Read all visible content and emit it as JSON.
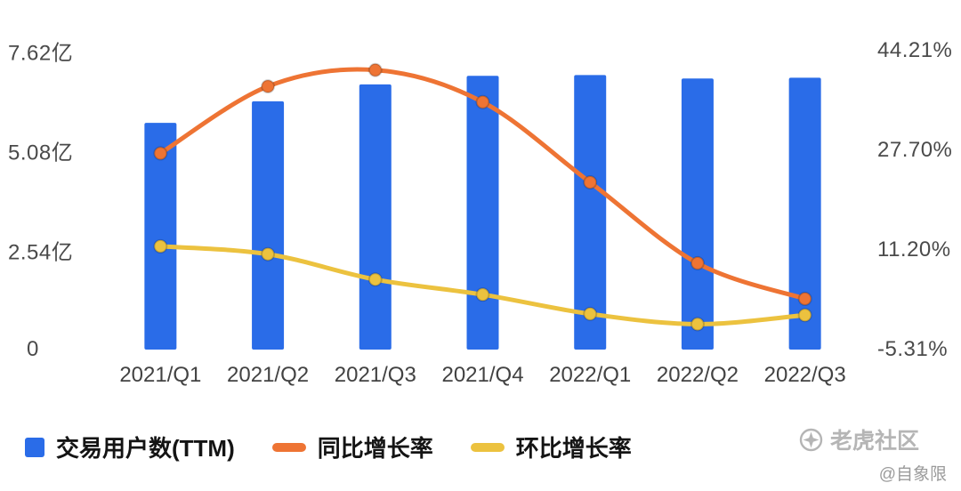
{
  "chart_data": {
    "type": "bar",
    "subtype": "combo-bar-line",
    "title": "",
    "categories": [
      "2021/Q1",
      "2021/Q2",
      "2021/Q3",
      "2021/Q4",
      "2022/Q1",
      "2022/Q2",
      "2022/Q3"
    ],
    "series": [
      {
        "name": "交易用户数(TTM)",
        "type": "bar",
        "axis": "left",
        "color": "#2a6ce8",
        "unit": "亿",
        "values": [
          5.78,
          6.33,
          6.76,
          6.98,
          7.0,
          6.91,
          6.93
        ]
      },
      {
        "name": "同比增长率",
        "type": "line",
        "axis": "right",
        "color": "#ee7434",
        "unit": "%",
        "values": [
          27.2,
          38.3,
          41.0,
          35.7,
          22.4,
          9.0,
          3.1
        ]
      },
      {
        "name": "环比增长率",
        "type": "line",
        "axis": "right",
        "color": "#ecc23f",
        "unit": "%",
        "values": [
          11.8,
          10.5,
          6.3,
          3.8,
          0.6,
          -1.1,
          0.4
        ]
      }
    ],
    "left_axis": {
      "min": 0,
      "max": 7.62,
      "unit": "亿",
      "tick_labels": [
        "7.62亿",
        "5.08亿",
        "2.54亿",
        "0"
      ]
    },
    "right_axis": {
      "min": -5.31,
      "max": 44.21,
      "unit": "%",
      "tick_labels": [
        "44.21%",
        "27.70%",
        "11.20%",
        "-5.31%"
      ]
    },
    "grid": false,
    "legend_position": "bottom"
  },
  "watermark": {
    "brand": "老虎社区",
    "handle": "@自象限"
  }
}
